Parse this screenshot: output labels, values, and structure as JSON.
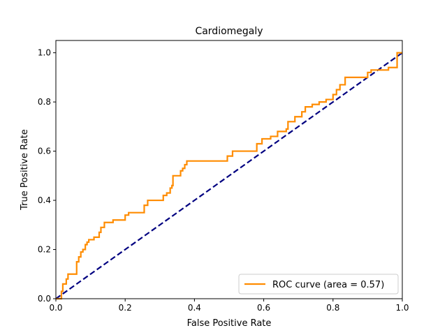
{
  "chart_data": {
    "type": "line",
    "title": "Cardiomegaly",
    "xlabel": "False Positive Rate",
    "ylabel": "True Positive Rate",
    "xlim": [
      0,
      1
    ],
    "ylim": [
      0,
      1.05
    ],
    "x_ticks": [
      0.0,
      0.2,
      0.4,
      0.6,
      0.8,
      1.0
    ],
    "y_ticks": [
      0.0,
      0.2,
      0.4,
      0.6,
      0.8,
      1.0
    ],
    "x_tick_labels": [
      "0.0",
      "0.2",
      "0.4",
      "0.6",
      "0.8",
      "1.0"
    ],
    "y_tick_labels": [
      "0.0",
      "0.2",
      "0.4",
      "0.6",
      "0.8",
      "1.0"
    ],
    "grid": false,
    "legend_position": "lower-right",
    "series": [
      {
        "name": "ROC curve (area = 0.57)",
        "color": "#ff8c00",
        "style": "solid",
        "points": [
          [
            0.0,
            0.0
          ],
          [
            0.016,
            0.0
          ],
          [
            0.016,
            0.03
          ],
          [
            0.02,
            0.03
          ],
          [
            0.02,
            0.06
          ],
          [
            0.03,
            0.06
          ],
          [
            0.03,
            0.08
          ],
          [
            0.035,
            0.08
          ],
          [
            0.035,
            0.1
          ],
          [
            0.06,
            0.1
          ],
          [
            0.06,
            0.15
          ],
          [
            0.066,
            0.15
          ],
          [
            0.066,
            0.17
          ],
          [
            0.072,
            0.17
          ],
          [
            0.072,
            0.19
          ],
          [
            0.078,
            0.19
          ],
          [
            0.078,
            0.2
          ],
          [
            0.085,
            0.2
          ],
          [
            0.085,
            0.22
          ],
          [
            0.09,
            0.22
          ],
          [
            0.09,
            0.23
          ],
          [
            0.095,
            0.23
          ],
          [
            0.095,
            0.24
          ],
          [
            0.11,
            0.24
          ],
          [
            0.11,
            0.25
          ],
          [
            0.125,
            0.25
          ],
          [
            0.125,
            0.27
          ],
          [
            0.13,
            0.27
          ],
          [
            0.13,
            0.29
          ],
          [
            0.14,
            0.29
          ],
          [
            0.14,
            0.31
          ],
          [
            0.165,
            0.31
          ],
          [
            0.165,
            0.32
          ],
          [
            0.2,
            0.32
          ],
          [
            0.2,
            0.34
          ],
          [
            0.21,
            0.34
          ],
          [
            0.21,
            0.35
          ],
          [
            0.255,
            0.35
          ],
          [
            0.255,
            0.38
          ],
          [
            0.265,
            0.38
          ],
          [
            0.265,
            0.4
          ],
          [
            0.31,
            0.4
          ],
          [
            0.31,
            0.42
          ],
          [
            0.32,
            0.42
          ],
          [
            0.32,
            0.43
          ],
          [
            0.33,
            0.43
          ],
          [
            0.33,
            0.45
          ],
          [
            0.335,
            0.45
          ],
          [
            0.335,
            0.46
          ],
          [
            0.338,
            0.46
          ],
          [
            0.338,
            0.5
          ],
          [
            0.36,
            0.5
          ],
          [
            0.36,
            0.52
          ],
          [
            0.366,
            0.52
          ],
          [
            0.366,
            0.53
          ],
          [
            0.372,
            0.53
          ],
          [
            0.372,
            0.545
          ],
          [
            0.378,
            0.545
          ],
          [
            0.378,
            0.56
          ],
          [
            0.495,
            0.56
          ],
          [
            0.495,
            0.58
          ],
          [
            0.51,
            0.58
          ],
          [
            0.51,
            0.6
          ],
          [
            0.58,
            0.6
          ],
          [
            0.58,
            0.63
          ],
          [
            0.595,
            0.63
          ],
          [
            0.595,
            0.65
          ],
          [
            0.62,
            0.65
          ],
          [
            0.62,
            0.66
          ],
          [
            0.64,
            0.66
          ],
          [
            0.64,
            0.68
          ],
          [
            0.665,
            0.68
          ],
          [
            0.665,
            0.69
          ],
          [
            0.67,
            0.69
          ],
          [
            0.67,
            0.72
          ],
          [
            0.69,
            0.72
          ],
          [
            0.69,
            0.74
          ],
          [
            0.71,
            0.74
          ],
          [
            0.71,
            0.76
          ],
          [
            0.72,
            0.76
          ],
          [
            0.72,
            0.78
          ],
          [
            0.74,
            0.78
          ],
          [
            0.74,
            0.79
          ],
          [
            0.76,
            0.79
          ],
          [
            0.76,
            0.8
          ],
          [
            0.78,
            0.8
          ],
          [
            0.78,
            0.81
          ],
          [
            0.8,
            0.81
          ],
          [
            0.8,
            0.83
          ],
          [
            0.81,
            0.83
          ],
          [
            0.81,
            0.85
          ],
          [
            0.82,
            0.85
          ],
          [
            0.82,
            0.87
          ],
          [
            0.835,
            0.87
          ],
          [
            0.835,
            0.9
          ],
          [
            0.9,
            0.9
          ],
          [
            0.9,
            0.92
          ],
          [
            0.91,
            0.92
          ],
          [
            0.91,
            0.93
          ],
          [
            0.96,
            0.93
          ],
          [
            0.96,
            0.94
          ],
          [
            0.985,
            0.94
          ],
          [
            0.985,
            1.0
          ],
          [
            1.0,
            1.0
          ]
        ]
      },
      {
        "name": "",
        "color": "#000080",
        "style": "dashed",
        "points": [
          [
            0.0,
            0.0
          ],
          [
            1.0,
            1.0
          ]
        ]
      }
    ]
  }
}
